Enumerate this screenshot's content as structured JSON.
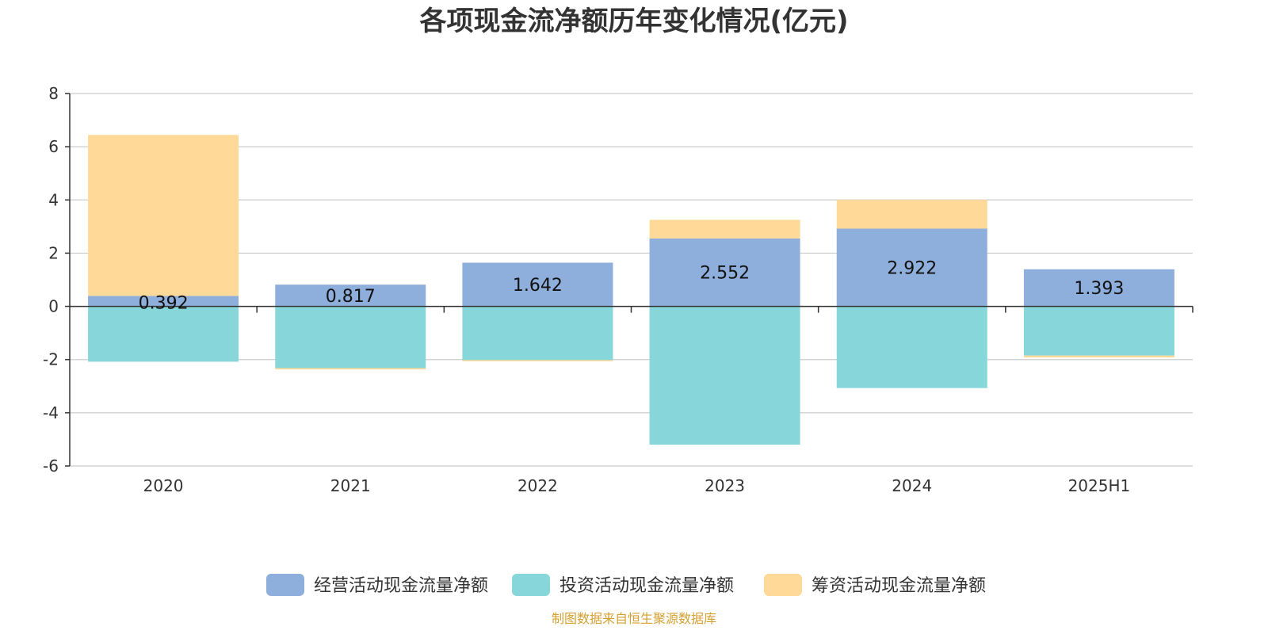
{
  "chart_data": {
    "type": "bar",
    "stacked": true,
    "title": "各项现金流净额历年变化情况(亿元)",
    "categories": [
      "2020",
      "2021",
      "2022",
      "2023",
      "2024",
      "2025H1"
    ],
    "ylim": [
      -6,
      8
    ],
    "yticks": [
      -6,
      -4,
      -2,
      0,
      2,
      4,
      6,
      8
    ],
    "grid": true,
    "legend_position": "bottom",
    "series": [
      {
        "name": "经营活动现金流量净额",
        "color": "#8eaedb",
        "values": [
          0.392,
          0.817,
          1.642,
          2.552,
          2.922,
          1.393
        ]
      },
      {
        "name": "投资活动现金流量净额",
        "color": "#87d6d9",
        "values": [
          -2.08,
          -2.32,
          -2.02,
          -5.2,
          -3.07,
          -1.85
        ]
      },
      {
        "name": "筹资活动现金流量净额",
        "color": "#ffd997",
        "values": [
          6.05,
          -0.05,
          -0.02,
          0.7,
          1.08,
          -0.07
        ]
      }
    ],
    "data_labels": [
      "0.392",
      "0.817",
      "1.642",
      "2.552",
      "2.922",
      "1.393"
    ]
  },
  "source": "制图数据来自恒生聚源数据库",
  "colors": {
    "source_text": "#d4a030",
    "grid": "#cccccc",
    "axis": "#333333"
  }
}
